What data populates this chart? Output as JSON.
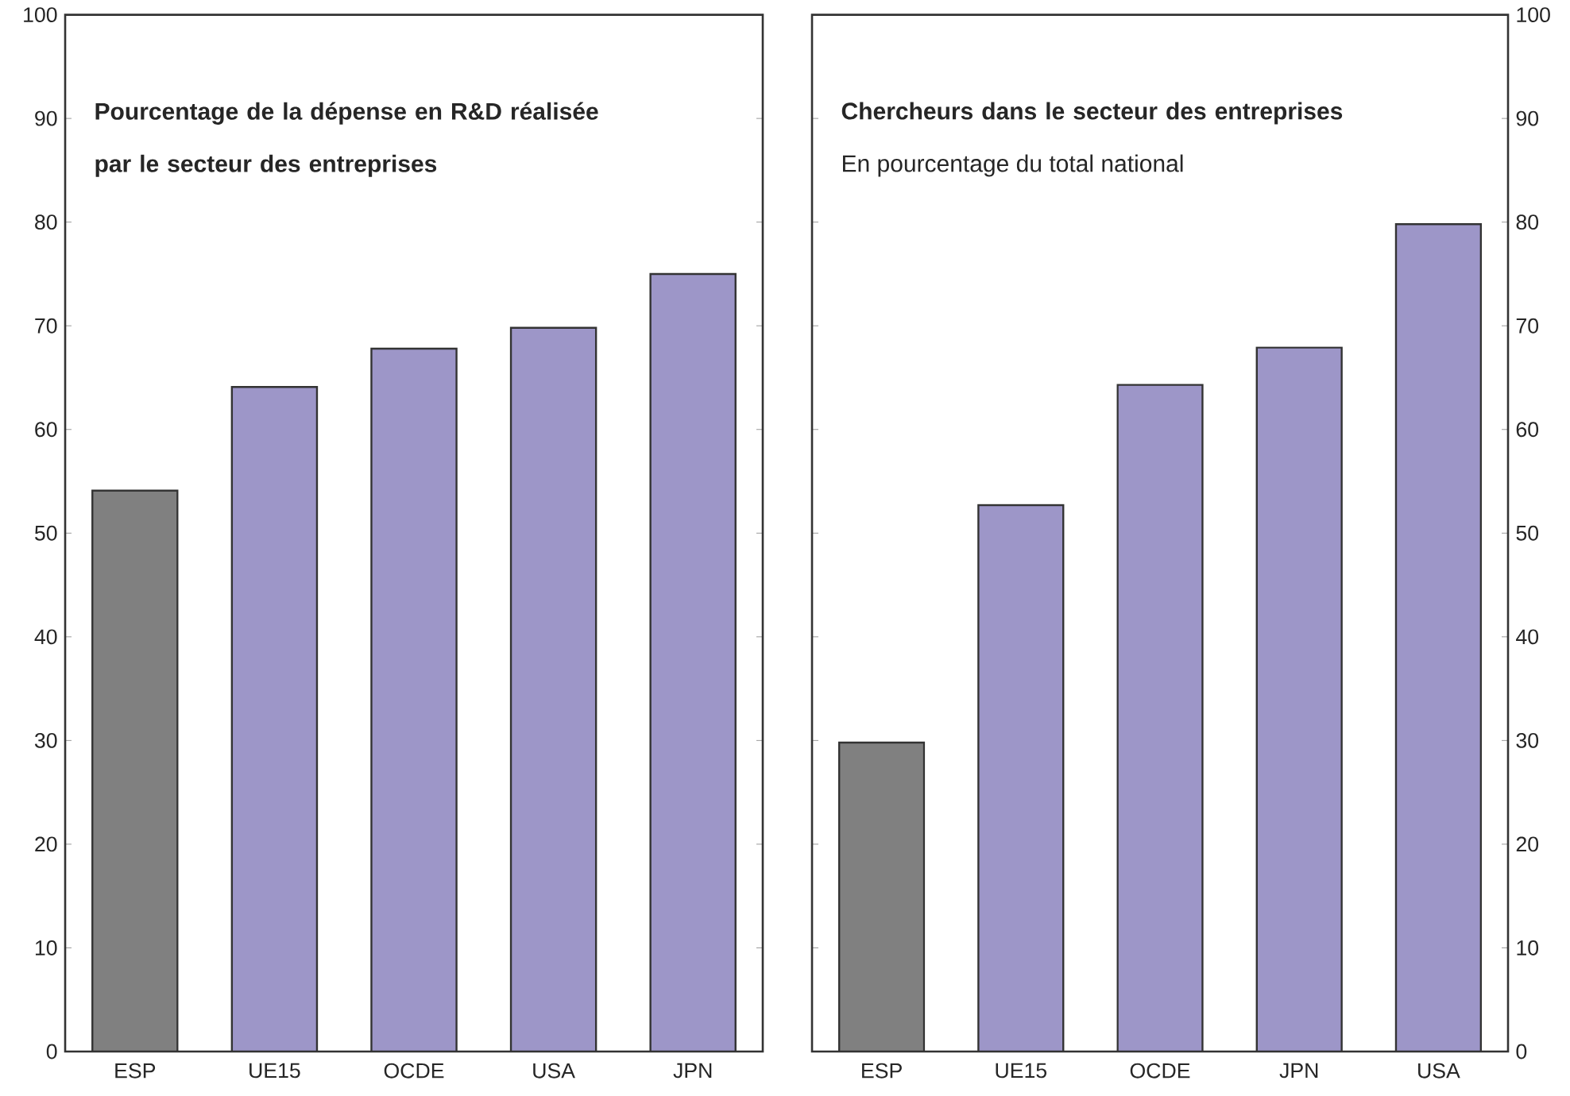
{
  "chart_data": [
    {
      "type": "bar",
      "title": "Pourcentage de la dépense en R&D réalisée par le secteur des entreprises",
      "categories": [
        "ESP",
        "UE15",
        "OCDE",
        "USA",
        "JPN"
      ],
      "values": [
        54.1,
        64.1,
        67.8,
        69.8,
        75.0
      ],
      "colors": [
        "#808080",
        "#9d96c8",
        "#9d96c8",
        "#9d96c8",
        "#9d96c8"
      ],
      "ylim": [
        0,
        100
      ],
      "yticks": [
        0,
        10,
        20,
        30,
        40,
        50,
        60,
        70,
        80,
        90,
        100
      ]
    },
    {
      "type": "bar",
      "title": "Chercheurs dans le secteur des entreprises",
      "subtitle": "En pourcentage du total national",
      "categories": [
        "ESP",
        "UE15",
        "OCDE",
        "JPN",
        "USA"
      ],
      "values": [
        29.8,
        52.7,
        64.3,
        67.9,
        79.8
      ],
      "colors": [
        "#808080",
        "#9d96c8",
        "#9d96c8",
        "#9d96c8",
        "#9d96c8"
      ],
      "ylim": [
        0,
        100
      ],
      "yticks": [
        0,
        10,
        20,
        30,
        40,
        50,
        60,
        70,
        80,
        90,
        100
      ]
    }
  ]
}
